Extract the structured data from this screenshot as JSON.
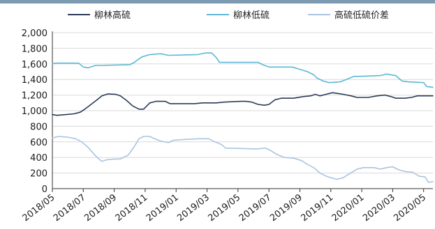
{
  "colors": {
    "top_bar": "#7c9ab2",
    "axis": "#333333",
    "grid": "#d9d9d9",
    "series": [
      "#2b3a56",
      "#5bb8d6",
      "#aac4e0"
    ]
  },
  "chart_data": {
    "type": "line",
    "title": "",
    "xlabel": "",
    "ylabel": "",
    "ylim": [
      0,
      2000
    ],
    "xlim": [
      0,
      24.6
    ],
    "yticks": [
      {
        "value": 0,
        "label": "0"
      },
      {
        "value": 200,
        "label": "200"
      },
      {
        "value": 400,
        "label": "400"
      },
      {
        "value": 600,
        "label": "600"
      },
      {
        "value": 800,
        "label": "800"
      },
      {
        "value": 1000,
        "label": "1,000"
      },
      {
        "value": 1200,
        "label": "1,200"
      },
      {
        "value": 1400,
        "label": "1,400"
      },
      {
        "value": 1600,
        "label": "1,600"
      },
      {
        "value": 1800,
        "label": "1,800"
      },
      {
        "value": 2000,
        "label": "2,000"
      }
    ],
    "xticks": [
      {
        "value": 0,
        "label": "2018/05"
      },
      {
        "value": 2,
        "label": "2018/07"
      },
      {
        "value": 4,
        "label": "2018/09"
      },
      {
        "value": 6,
        "label": "2018/11"
      },
      {
        "value": 8,
        "label": "2019/01"
      },
      {
        "value": 10,
        "label": "2019/03"
      },
      {
        "value": 12,
        "label": "2019/05"
      },
      {
        "value": 14,
        "label": "2019/07"
      },
      {
        "value": 16,
        "label": "2019/09"
      },
      {
        "value": 18,
        "label": "2019/11"
      },
      {
        "value": 20,
        "label": "2020/01"
      },
      {
        "value": 22,
        "label": "2020/03"
      },
      {
        "value": 24,
        "label": "2020/05"
      }
    ],
    "legend_position": "top",
    "grid": {
      "horizontal": true,
      "vertical": false
    },
    "series": [
      {
        "name": "柳林高硫",
        "points": [
          [
            0,
            950
          ],
          [
            0.3,
            940
          ],
          [
            0.9,
            950
          ],
          [
            1.4,
            960
          ],
          [
            1.8,
            980
          ],
          [
            2.1,
            1020
          ],
          [
            2.5,
            1080
          ],
          [
            2.9,
            1140
          ],
          [
            3.2,
            1190
          ],
          [
            3.6,
            1215
          ],
          [
            4.1,
            1210
          ],
          [
            4.4,
            1190
          ],
          [
            4.8,
            1130
          ],
          [
            5.2,
            1060
          ],
          [
            5.6,
            1020
          ],
          [
            5.9,
            1020
          ],
          [
            6.3,
            1100
          ],
          [
            6.7,
            1120
          ],
          [
            7.3,
            1120
          ],
          [
            7.6,
            1090
          ],
          [
            9.2,
            1090
          ],
          [
            9.7,
            1100
          ],
          [
            10.6,
            1100
          ],
          [
            11.1,
            1110
          ],
          [
            12.2,
            1120
          ],
          [
            12.5,
            1120
          ],
          [
            12.9,
            1110
          ],
          [
            13.3,
            1080
          ],
          [
            13.7,
            1070
          ],
          [
            14.0,
            1080
          ],
          [
            14.4,
            1140
          ],
          [
            14.8,
            1160
          ],
          [
            15.6,
            1160
          ],
          [
            16.2,
            1180
          ],
          [
            16.7,
            1190
          ],
          [
            17.0,
            1210
          ],
          [
            17.3,
            1190
          ],
          [
            17.7,
            1210
          ],
          [
            18.1,
            1230
          ],
          [
            18.5,
            1220
          ],
          [
            18.8,
            1210
          ],
          [
            19.3,
            1190
          ],
          [
            19.7,
            1170
          ],
          [
            20.4,
            1170
          ],
          [
            21.0,
            1190
          ],
          [
            21.5,
            1200
          ],
          [
            21.9,
            1180
          ],
          [
            22.2,
            1160
          ],
          [
            22.8,
            1160
          ],
          [
            23.2,
            1170
          ],
          [
            23.6,
            1190
          ],
          [
            24.0,
            1190
          ],
          [
            24.6,
            1190
          ]
        ]
      },
      {
        "name": "柳林低硫",
        "points": [
          [
            0,
            1600
          ],
          [
            0.2,
            1610
          ],
          [
            1.7,
            1610
          ],
          [
            2.0,
            1560
          ],
          [
            2.3,
            1550
          ],
          [
            2.8,
            1580
          ],
          [
            3.1,
            1580
          ],
          [
            5.0,
            1590
          ],
          [
            5.3,
            1620
          ],
          [
            5.5,
            1650
          ],
          [
            5.8,
            1690
          ],
          [
            6.3,
            1720
          ],
          [
            7.0,
            1730
          ],
          [
            7.5,
            1710
          ],
          [
            9.4,
            1720
          ],
          [
            9.9,
            1740
          ],
          [
            10.3,
            1740
          ],
          [
            10.6,
            1680
          ],
          [
            10.8,
            1620
          ],
          [
            11.0,
            1620
          ],
          [
            13.3,
            1620
          ],
          [
            13.6,
            1590
          ],
          [
            14.0,
            1560
          ],
          [
            15.5,
            1560
          ],
          [
            16.0,
            1530
          ],
          [
            16.5,
            1500
          ],
          [
            16.9,
            1460
          ],
          [
            17.1,
            1420
          ],
          [
            17.5,
            1380
          ],
          [
            17.9,
            1360
          ],
          [
            18.6,
            1370
          ],
          [
            19.0,
            1400
          ],
          [
            19.5,
            1440
          ],
          [
            19.9,
            1440
          ],
          [
            21.2,
            1450
          ],
          [
            21.6,
            1470
          ],
          [
            22.2,
            1450
          ],
          [
            22.6,
            1380
          ],
          [
            23.0,
            1370
          ],
          [
            24.0,
            1360
          ],
          [
            24.2,
            1310
          ],
          [
            24.6,
            1300
          ]
        ]
      },
      {
        "name": "高硫低硫价差",
        "points": [
          [
            0,
            650
          ],
          [
            0.4,
            670
          ],
          [
            1.0,
            660
          ],
          [
            1.5,
            640
          ],
          [
            1.9,
            600
          ],
          [
            2.3,
            530
          ],
          [
            2.7,
            440
          ],
          [
            3.0,
            380
          ],
          [
            3.2,
            350
          ],
          [
            3.5,
            370
          ],
          [
            4.1,
            380
          ],
          [
            4.4,
            380
          ],
          [
            4.9,
            430
          ],
          [
            5.3,
            540
          ],
          [
            5.6,
            640
          ],
          [
            5.9,
            670
          ],
          [
            6.3,
            670
          ],
          [
            6.6,
            640
          ],
          [
            7.0,
            610
          ],
          [
            7.5,
            590
          ],
          [
            7.8,
            620
          ],
          [
            8.5,
            630
          ],
          [
            9.5,
            640
          ],
          [
            10.1,
            640
          ],
          [
            10.5,
            600
          ],
          [
            10.9,
            570
          ],
          [
            11.2,
            520
          ],
          [
            13.2,
            510
          ],
          [
            13.8,
            520
          ],
          [
            14.1,
            490
          ],
          [
            14.5,
            440
          ],
          [
            15.0,
            400
          ],
          [
            15.6,
            390
          ],
          [
            16.1,
            360
          ],
          [
            16.5,
            310
          ],
          [
            16.9,
            270
          ],
          [
            17.3,
            200
          ],
          [
            17.7,
            160
          ],
          [
            18.0,
            140
          ],
          [
            18.4,
            120
          ],
          [
            18.8,
            140
          ],
          [
            19.2,
            190
          ],
          [
            19.7,
            250
          ],
          [
            20.1,
            270
          ],
          [
            20.8,
            270
          ],
          [
            21.2,
            250
          ],
          [
            21.6,
            270
          ],
          [
            22.0,
            280
          ],
          [
            22.4,
            240
          ],
          [
            22.8,
            220
          ],
          [
            23.3,
            210
          ],
          [
            23.7,
            160
          ],
          [
            24.1,
            150
          ],
          [
            24.3,
            80
          ],
          [
            24.6,
            90
          ]
        ]
      }
    ]
  }
}
